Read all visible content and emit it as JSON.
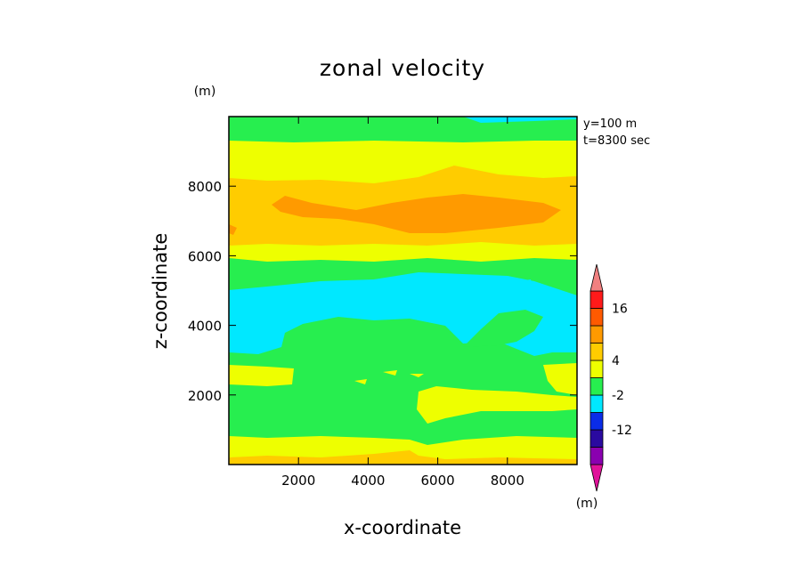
{
  "chart_data": {
    "type": "contour",
    "title": "zonal velocity",
    "xlabel": "x-coordinate",
    "ylabel": "z-coordinate",
    "x_unit": "(m)",
    "y_unit": "(m)",
    "colorbar_unit": "(m)",
    "annotation_lines": [
      "y=100 m",
      "t=8300 sec"
    ],
    "xlim": [
      0,
      10000
    ],
    "ylim": [
      0,
      10000
    ],
    "xticks": [
      2000,
      4000,
      6000,
      8000
    ],
    "yticks": [
      2000,
      4000,
      6000,
      8000
    ],
    "xtick_labels": [
      "2000",
      "4000",
      "6000",
      "8000"
    ],
    "ytick_labels": [
      "2000",
      "4000",
      "6000",
      "8000"
    ],
    "colorbar": {
      "colors": [
        "#e0129a",
        "#8a00b0",
        "#2a0aa0",
        "#0a2ce8",
        "#00e8ff",
        "#27ee4f",
        "#eeff00",
        "#ffcc00",
        "#ff9a00",
        "#ff5a00",
        "#ff1a1a",
        "#f08080"
      ],
      "labels": [
        "-12",
        "-2",
        "4",
        "16"
      ]
    },
    "bands": [
      {
        "z_min": 0,
        "z_max": 150,
        "color": "#ffcc00",
        "note": "bottom strip"
      },
      {
        "z_min": 150,
        "z_max": 700,
        "color": "#eeff00"
      },
      {
        "z_min": 700,
        "z_max": 2300,
        "color": "#27ee4f"
      },
      {
        "z_min": 2300,
        "z_max": 2900,
        "color": "#eeff00"
      },
      {
        "z_min": 2900,
        "z_max": 3300,
        "color": "#27ee4f"
      },
      {
        "z_min": 3300,
        "z_max": 5200,
        "color": "#00e8ff"
      },
      {
        "z_min": 5200,
        "z_max": 6100,
        "color": "#27ee4f"
      },
      {
        "z_min": 6100,
        "z_max": 6600,
        "color": "#eeff00"
      },
      {
        "z_min": 6600,
        "z_max": 8300,
        "color": "#ffcc00"
      },
      {
        "z_min": 8300,
        "z_max": 9200,
        "color": "#eeff00"
      },
      {
        "z_min": 9200,
        "z_max": 10000,
        "color": "#27ee4f"
      }
    ]
  }
}
